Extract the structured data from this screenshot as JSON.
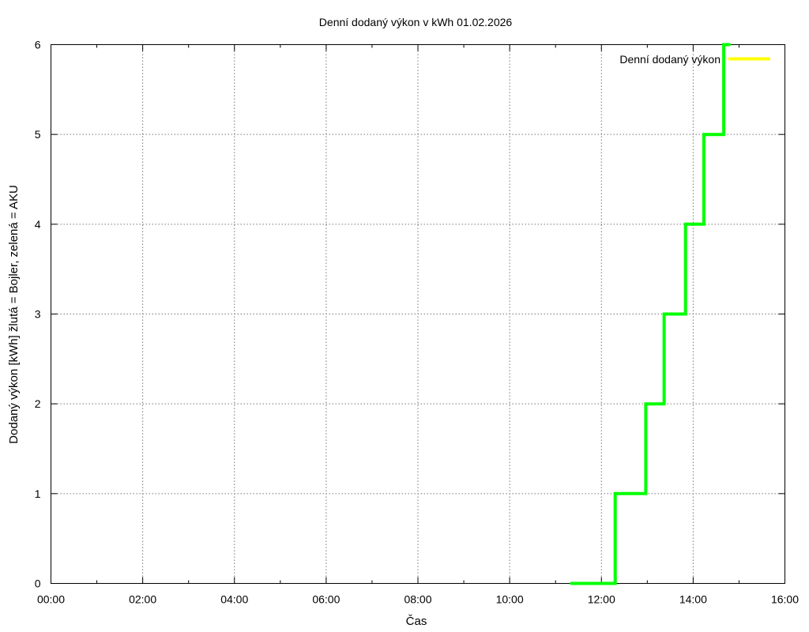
{
  "chart_data": {
    "type": "line",
    "step": true,
    "title": "Denní dodaný výkon v kWh 01.02.2026",
    "xlabel": "Čas",
    "ylabel": "Dodaný výkon [kWh]  žlutá = Bojler, zelená = AKU",
    "xlim": [
      "00:00",
      "16:00"
    ],
    "ylim": [
      0,
      6
    ],
    "x_ticks": [
      "00:00",
      "02:00",
      "04:00",
      "06:00",
      "08:00",
      "10:00",
      "12:00",
      "14:00",
      "16:00"
    ],
    "y_ticks": [
      "0",
      "1",
      "2",
      "3",
      "4",
      "5",
      "6"
    ],
    "grid": true,
    "legend": {
      "position": "top-right",
      "entries": [
        {
          "label": "Denní dodaný výkon",
          "color": "#ffff00"
        }
      ]
    },
    "series": [
      {
        "color": "#00ff00",
        "points": [
          {
            "x": "11:20",
            "y": 0
          },
          {
            "x": "11:40",
            "y": 0
          },
          {
            "x": "12:18",
            "y": 0
          },
          {
            "x": "12:18",
            "y": 1
          },
          {
            "x": "12:58",
            "y": 1
          },
          {
            "x": "12:58",
            "y": 2
          },
          {
            "x": "13:22",
            "y": 2
          },
          {
            "x": "13:22",
            "y": 3
          },
          {
            "x": "13:50",
            "y": 3
          },
          {
            "x": "13:50",
            "y": 4
          },
          {
            "x": "14:14",
            "y": 4
          },
          {
            "x": "14:14",
            "y": 5
          },
          {
            "x": "14:40",
            "y": 5
          },
          {
            "x": "14:40",
            "y": 6
          },
          {
            "x": "14:48",
            "y": 6
          }
        ]
      }
    ]
  }
}
